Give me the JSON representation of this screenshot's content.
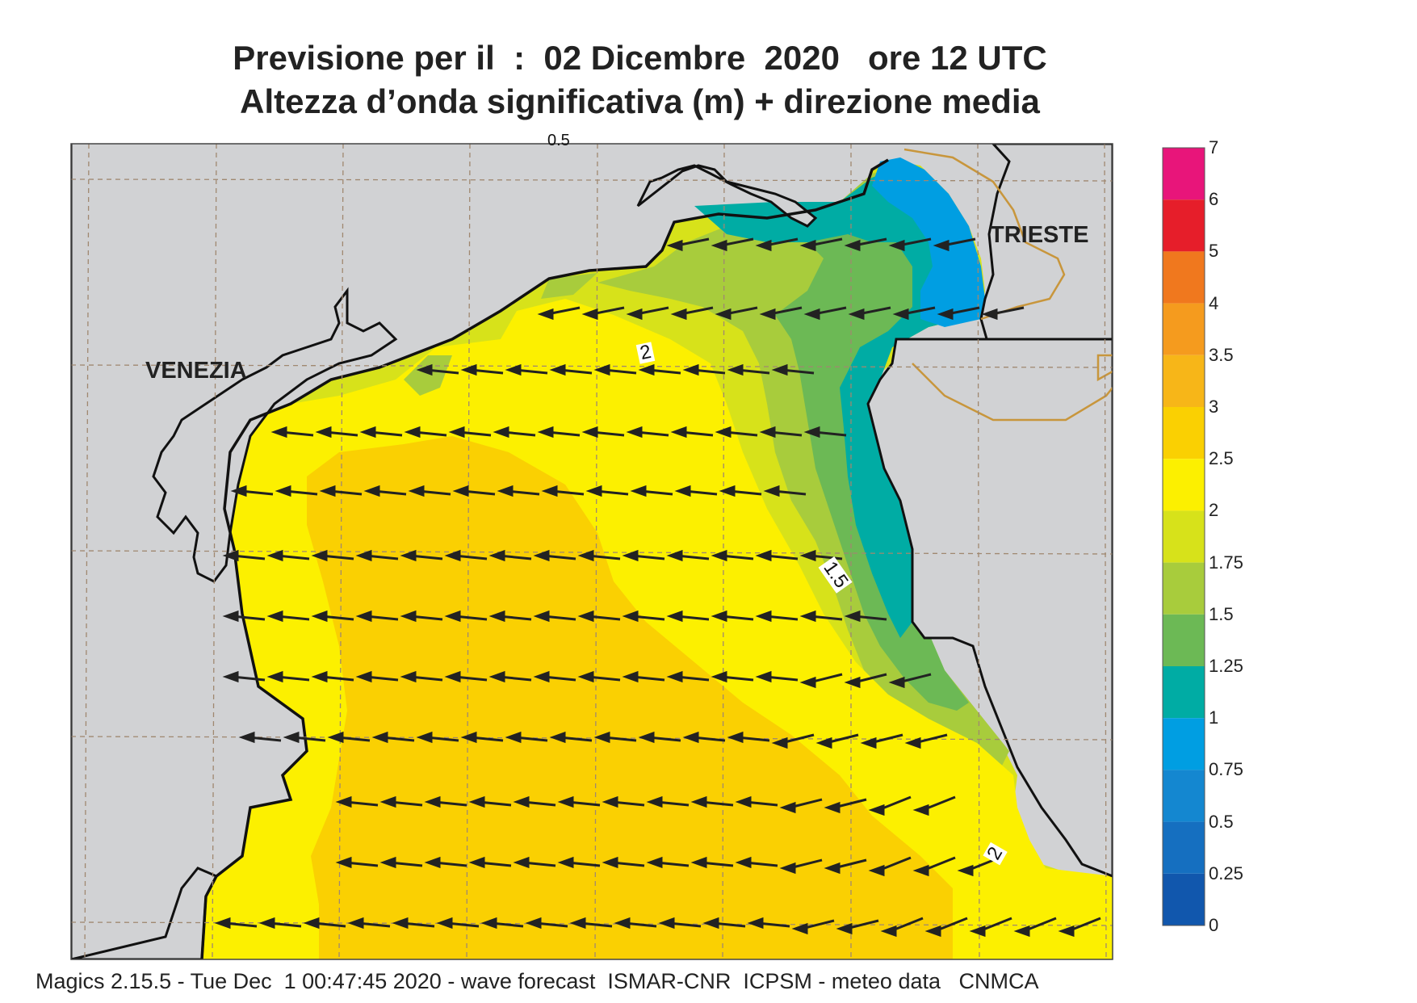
{
  "title": {
    "line1": "Previsione per il  :  02 Dicembre  2020   ore 12 UTC",
    "line2": "Altezza d’onda significativa (m) + direzione media"
  },
  "cities": {
    "venezia": "VENEZIA",
    "trieste": "TRIESTE"
  },
  "contour_labels": {
    "two_a": "2",
    "one_five": "1.5",
    "two_b": "2",
    "half": "0.5"
  },
  "legend": {
    "ticks": [
      "7",
      "6",
      "5",
      "4",
      "3.5",
      "3",
      "2.5",
      "2",
      "1.75",
      "1.5",
      "1.25",
      "1",
      "0.75",
      "0.5",
      "0.25",
      "0"
    ],
    "colors": [
      "#e8157a",
      "#e61e2a",
      "#f0781e",
      "#f59b1e",
      "#f7b618",
      "#fad002",
      "#fcf000",
      "#d7e21a",
      "#a8cc3c",
      "#6cb955",
      "#00aca4",
      "#009ee2",
      "#1487d0",
      "#156fc0",
      "#1157ad"
    ]
  },
  "footer": "Magics 2.15.5 - Tue Dec  1 00:47:45 2020 - wave forecast  ISMAR-CNR  ICPSM - meteo data   CNMCA",
  "colors": {
    "land": "#d1d2d4",
    "sea_yellow": "#fcf000",
    "sea_orange": "#fad002",
    "arrow": "#222222",
    "border": "#c8963c"
  }
}
